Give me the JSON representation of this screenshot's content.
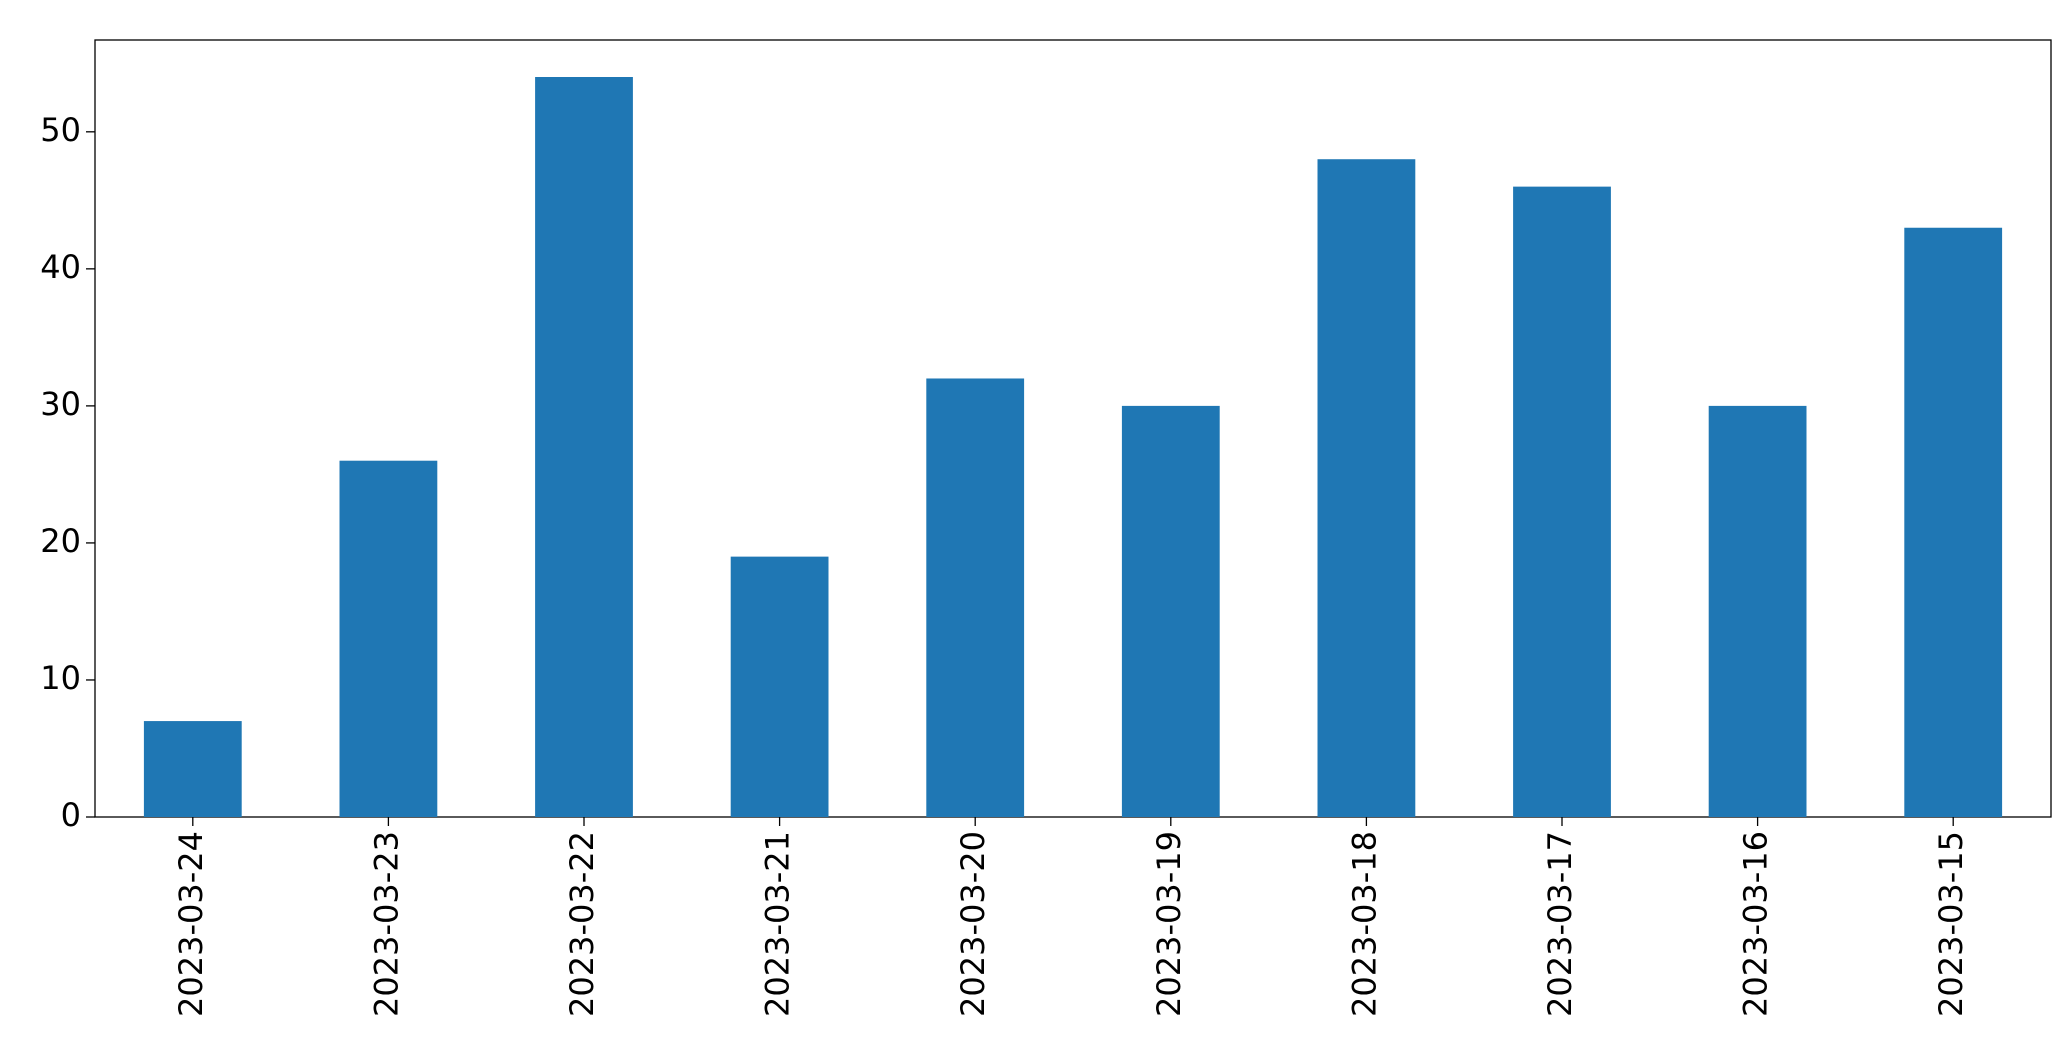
{
  "chart_data": {
    "type": "bar",
    "categories": [
      "2023-03-24",
      "2023-03-23",
      "2023-03-22",
      "2023-03-21",
      "2023-03-20",
      "2023-03-19",
      "2023-03-18",
      "2023-03-17",
      "2023-03-16",
      "2023-03-15"
    ],
    "values": [
      7,
      26,
      54,
      19,
      32,
      30,
      48,
      46,
      30,
      43
    ],
    "color": "#1f77b4",
    "ylim": [
      0,
      56.7
    ],
    "yticks": [
      0,
      10,
      20,
      30,
      40,
      50
    ],
    "grid": false
  }
}
